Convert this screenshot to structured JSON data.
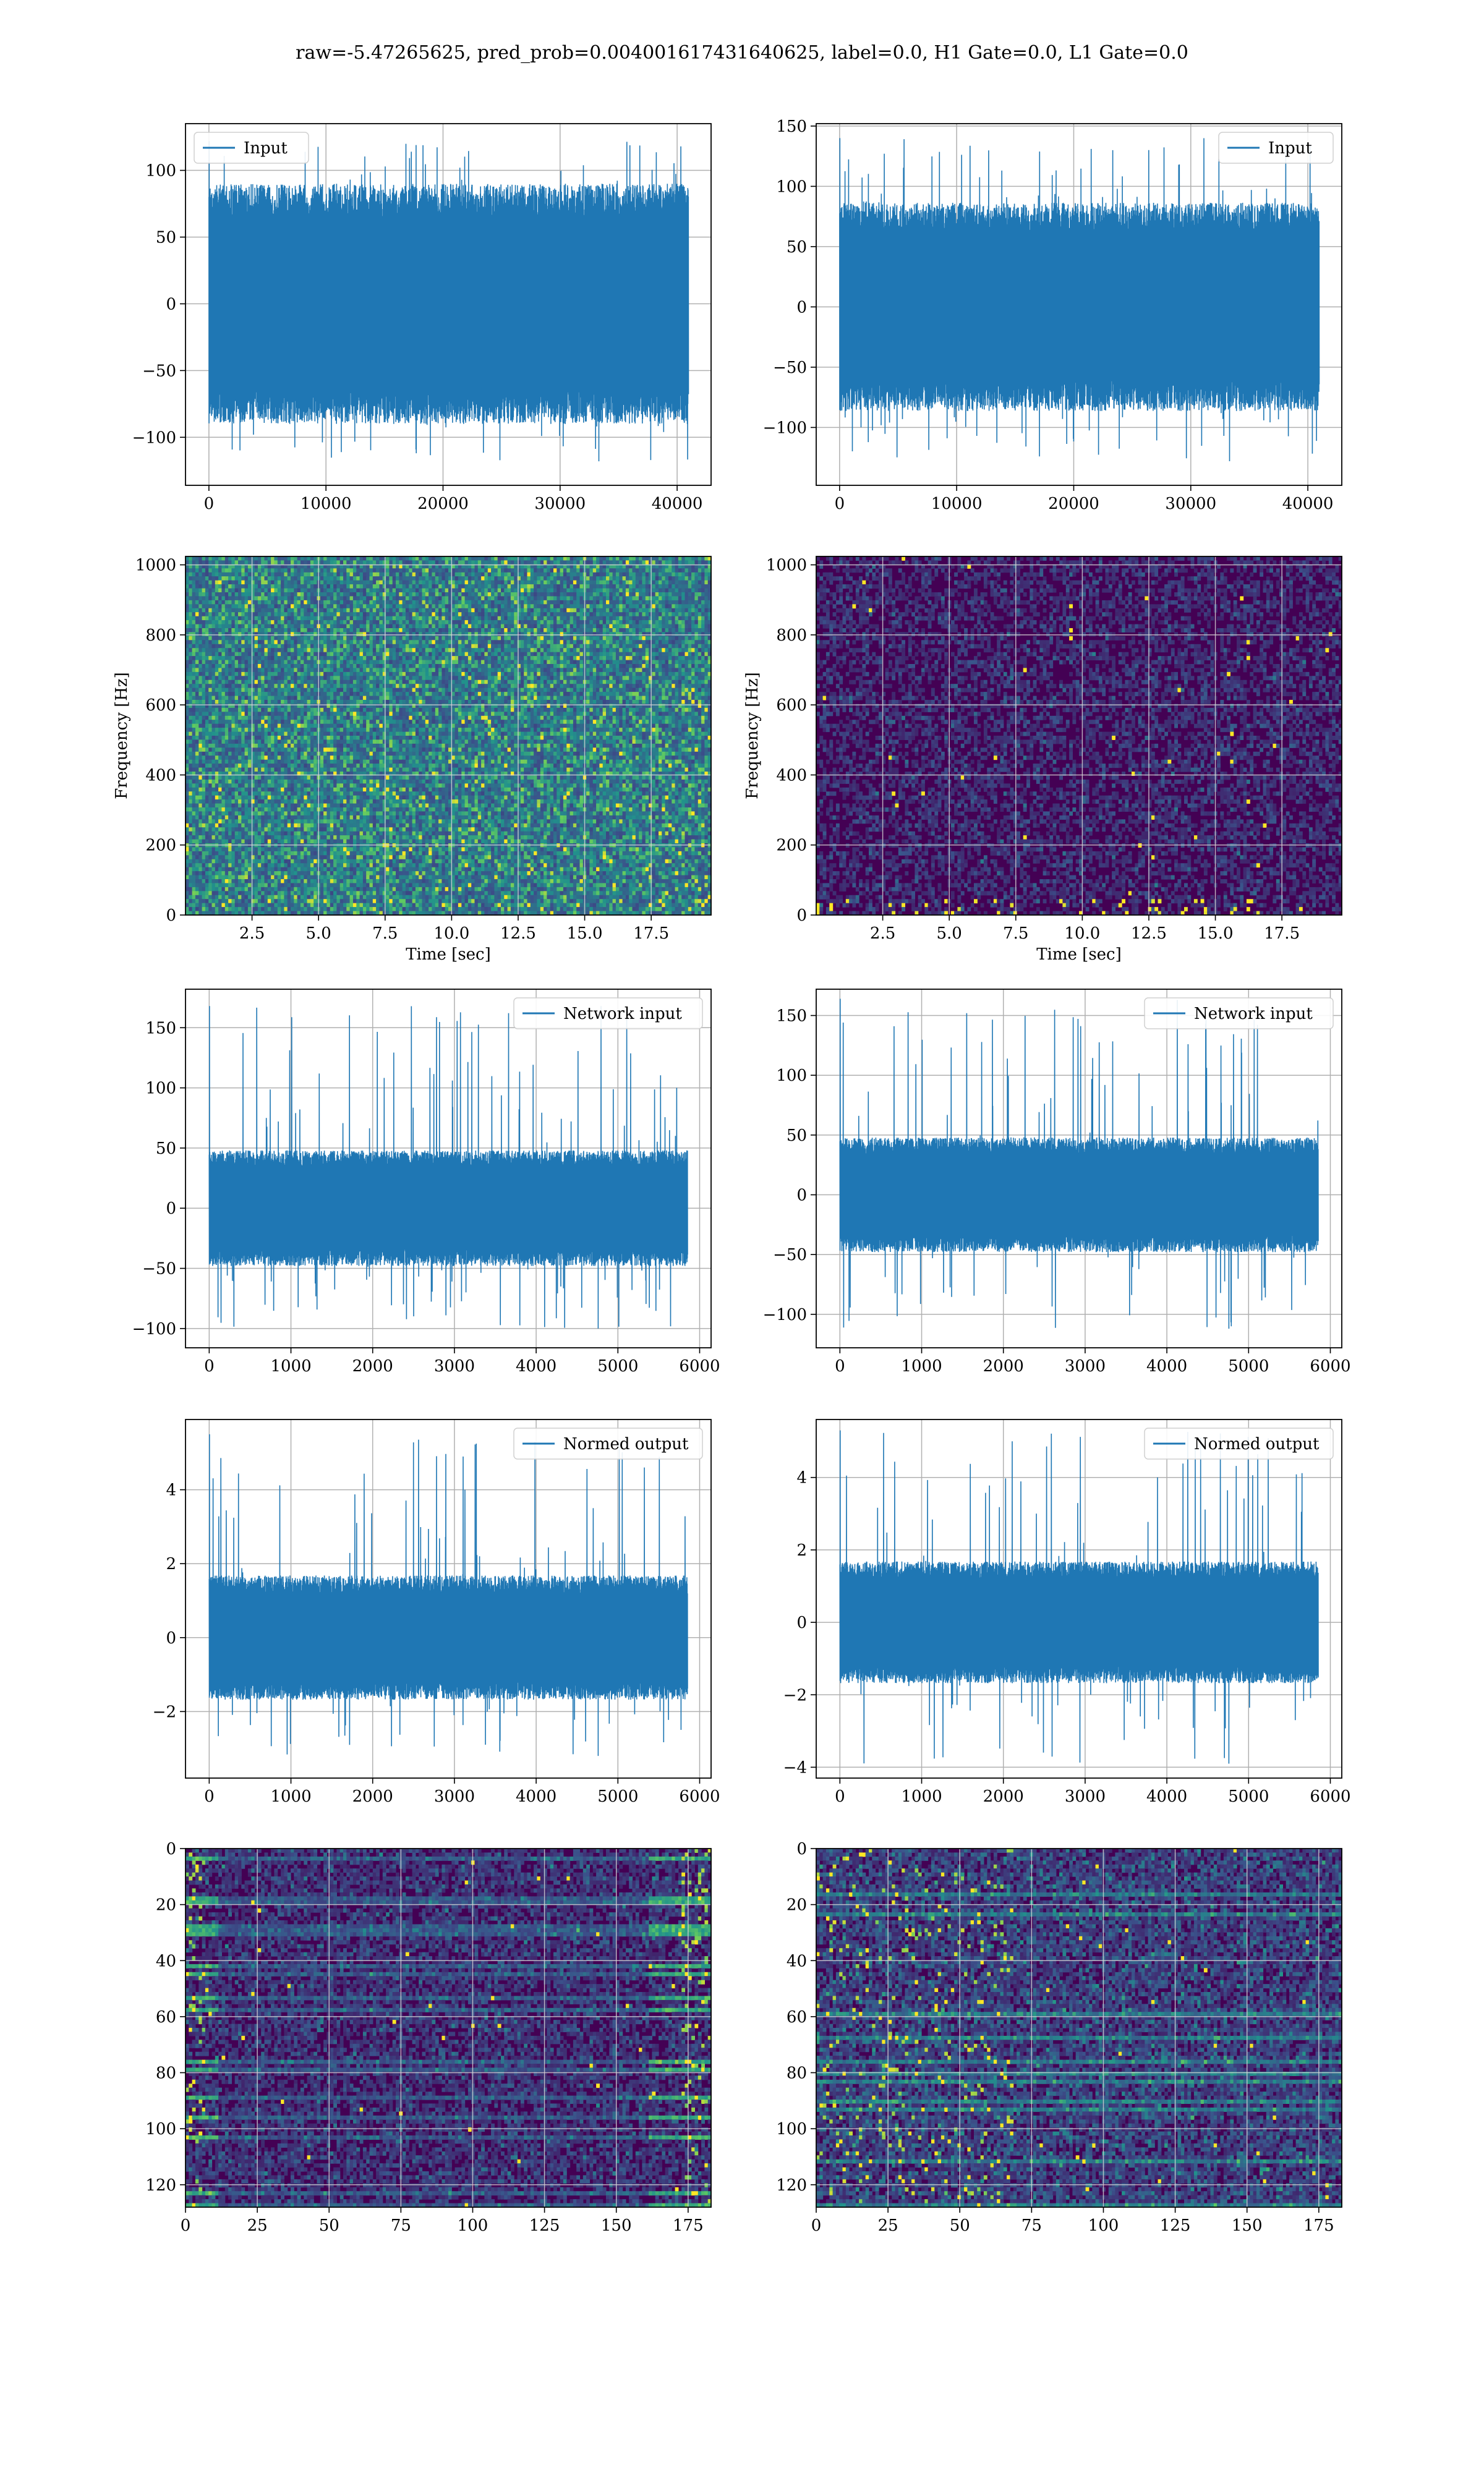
{
  "suptitle": "raw=-5.47265625, pred_prob=0.004001617431640625, label=0.0, H1 Gate=0.0, L1 Gate=0.0",
  "colors": {
    "line": "#1f77b4",
    "grid": "#b0b0b0",
    "viridis_low": "#440154",
    "viridis_mid": "#21918c",
    "viridis_high": "#fde725"
  },
  "chart_data": [
    {
      "id": "r1c1",
      "type": "line",
      "legend": "Input",
      "legend_loc": "upper-left",
      "grid": true,
      "xlim": [
        -2000,
        42900
      ],
      "ylim": [
        -136,
        135
      ],
      "xticks": [
        0,
        10000,
        20000,
        30000,
        40000
      ],
      "yticks": [
        -100,
        -50,
        0,
        50,
        100
      ],
      "n": 40960,
      "envelope": {
        "q": [
          [
            -75,
            75
          ]
        ],
        "spike_max": 122,
        "spike_min": -118
      }
    },
    {
      "id": "r1c2",
      "type": "line",
      "legend": "Input",
      "legend_loc": "upper-right",
      "grid": true,
      "xlim": [
        -2000,
        42900
      ],
      "ylim": [
        -148,
        152
      ],
      "xticks": [
        0,
        10000,
        20000,
        30000,
        40000
      ],
      "yticks": [
        -100,
        -50,
        0,
        50,
        100,
        150
      ],
      "n": 40960,
      "envelope": {
        "q": [
          [
            -72,
            72
          ]
        ],
        "spike_max": 140,
        "spike_min": -128
      }
    },
    {
      "id": "r2c1",
      "type": "heatmap",
      "xlabel": "Time [sec]",
      "ylabel": "Frequency [Hz]",
      "xlim": [
        0,
        19.75
      ],
      "ylim": [
        0,
        1024
      ],
      "xticks": [
        2.5,
        5.0,
        7.5,
        10.0,
        12.5,
        15.0,
        17.5
      ],
      "xtick_labels": [
        "2.5",
        "5.0",
        "7.5",
        "10.0",
        "12.5",
        "15.0",
        "17.5"
      ],
      "yticks": [
        0,
        200,
        400,
        600,
        800,
        1000
      ],
      "grid": true,
      "intensity": "high"
    },
    {
      "id": "r2c2",
      "type": "heatmap",
      "xlabel": "Time [sec]",
      "ylabel": "Frequency [Hz]",
      "xlim": [
        0,
        19.75
      ],
      "ylim": [
        0,
        1024
      ],
      "xticks": [
        2.5,
        5.0,
        7.5,
        10.0,
        12.5,
        15.0,
        17.5
      ],
      "xtick_labels": [
        "2.5",
        "5.0",
        "7.5",
        "10.0",
        "12.5",
        "15.0",
        "17.5"
      ],
      "yticks": [
        0,
        200,
        400,
        600,
        800,
        1000
      ],
      "grid": true,
      "intensity": "low"
    },
    {
      "id": "r3c1",
      "type": "line",
      "legend": "Network input",
      "legend_loc": "upper-right",
      "grid": true,
      "xlim": [
        -290,
        6140
      ],
      "ylim": [
        -116,
        182
      ],
      "xticks": [
        0,
        1000,
        2000,
        3000,
        4000,
        5000,
        6000
      ],
      "yticks": [
        -100,
        -50,
        0,
        50,
        100,
        150
      ],
      "n": 5852,
      "envelope": {
        "q": [
          [
            -40,
            40
          ]
        ],
        "spike_max": 168,
        "spike_min": -100
      }
    },
    {
      "id": "r3c2",
      "type": "line",
      "legend": "Network input",
      "legend_loc": "upper-right",
      "grid": true,
      "xlim": [
        -290,
        6140
      ],
      "ylim": [
        -128,
        172
      ],
      "xticks": [
        0,
        1000,
        2000,
        3000,
        4000,
        5000,
        6000
      ],
      "yticks": [
        -100,
        -50,
        0,
        50,
        100,
        150
      ],
      "n": 5852,
      "envelope": {
        "q": [
          [
            -40,
            40
          ]
        ],
        "spike_max": 164,
        "spike_min": -112
      }
    },
    {
      "id": "r4c1",
      "type": "line",
      "legend": "Normed output",
      "legend_loc": "upper-right",
      "grid": true,
      "xlim": [
        -290,
        6140
      ],
      "ylim": [
        -3.8,
        5.9
      ],
      "xticks": [
        0,
        1000,
        2000,
        3000,
        4000,
        5000,
        6000
      ],
      "yticks": [
        -2,
        0,
        2,
        4
      ],
      "n": 5852,
      "envelope": {
        "q": [
          [
            -1.4,
            1.4
          ]
        ],
        "spike_max": 5.5,
        "spike_min": -3.2
      }
    },
    {
      "id": "r4c2",
      "type": "line",
      "legend": "Normed output",
      "legend_loc": "upper-right",
      "grid": true,
      "xlim": [
        -290,
        6140
      ],
      "ylim": [
        -4.3,
        5.6
      ],
      "xticks": [
        0,
        1000,
        2000,
        3000,
        4000,
        5000,
        6000
      ],
      "yticks": [
        -4,
        -2,
        0,
        2,
        4
      ],
      "n": 5852,
      "envelope": {
        "q": [
          [
            -1.4,
            1.4
          ]
        ],
        "spike_max": 5.3,
        "spike_min": -3.9
      }
    },
    {
      "id": "r5c1",
      "type": "heatmap",
      "xlim": [
        0,
        183
      ],
      "ylim": [
        128,
        0
      ],
      "y_inverted": true,
      "xticks": [
        0,
        25,
        50,
        75,
        100,
        125,
        150,
        175
      ],
      "yticks": [
        0,
        20,
        40,
        60,
        80,
        100,
        120
      ],
      "grid": true,
      "intensity": "striped-a"
    },
    {
      "id": "r5c2",
      "type": "heatmap",
      "xlim": [
        0,
        183
      ],
      "ylim": [
        128,
        0
      ],
      "y_inverted": true,
      "xticks": [
        0,
        25,
        50,
        75,
        100,
        125,
        150,
        175
      ],
      "yticks": [
        0,
        20,
        40,
        60,
        80,
        100,
        120
      ],
      "grid": true,
      "intensity": "striped-b"
    }
  ]
}
